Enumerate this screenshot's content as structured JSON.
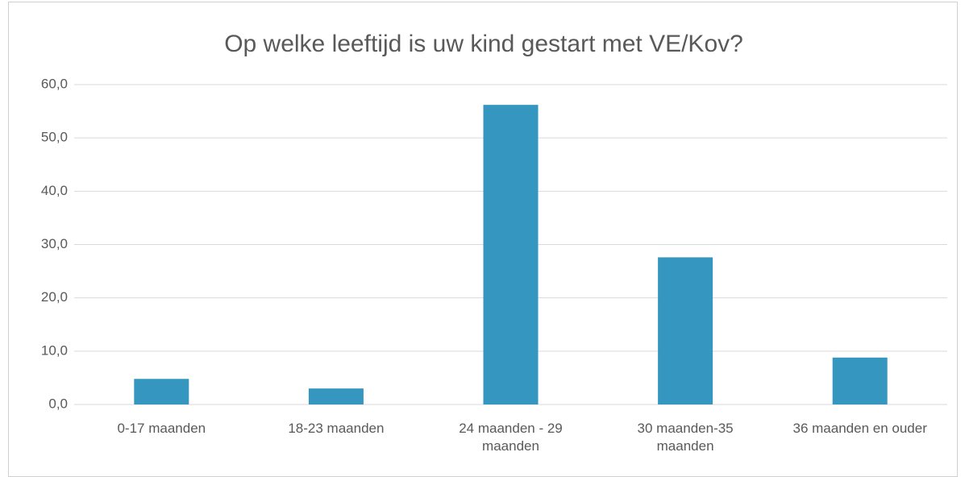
{
  "chart_data": {
    "type": "bar",
    "title": "Op welke leeftijd is uw kind gestart met VE/Kov?",
    "categories": [
      "0-17 maanden",
      "18-23 maanden",
      "24 maanden - 29 maanden",
      "30 maanden-35 maanden",
      "36 maanden en ouder"
    ],
    "values": [
      4.8,
      3.0,
      56.2,
      27.6,
      8.8
    ],
    "color": "#3596bf",
    "ylim": [
      0,
      60
    ],
    "yticks": [
      {
        "value": 0,
        "label": "0,0"
      },
      {
        "value": 10,
        "label": "10,0"
      },
      {
        "value": 20,
        "label": "20,0"
      },
      {
        "value": 30,
        "label": "30,0"
      },
      {
        "value": 40,
        "label": "40,0"
      },
      {
        "value": 50,
        "label": "50,0"
      },
      {
        "value": 60,
        "label": "60,0"
      }
    ],
    "grid": true
  }
}
